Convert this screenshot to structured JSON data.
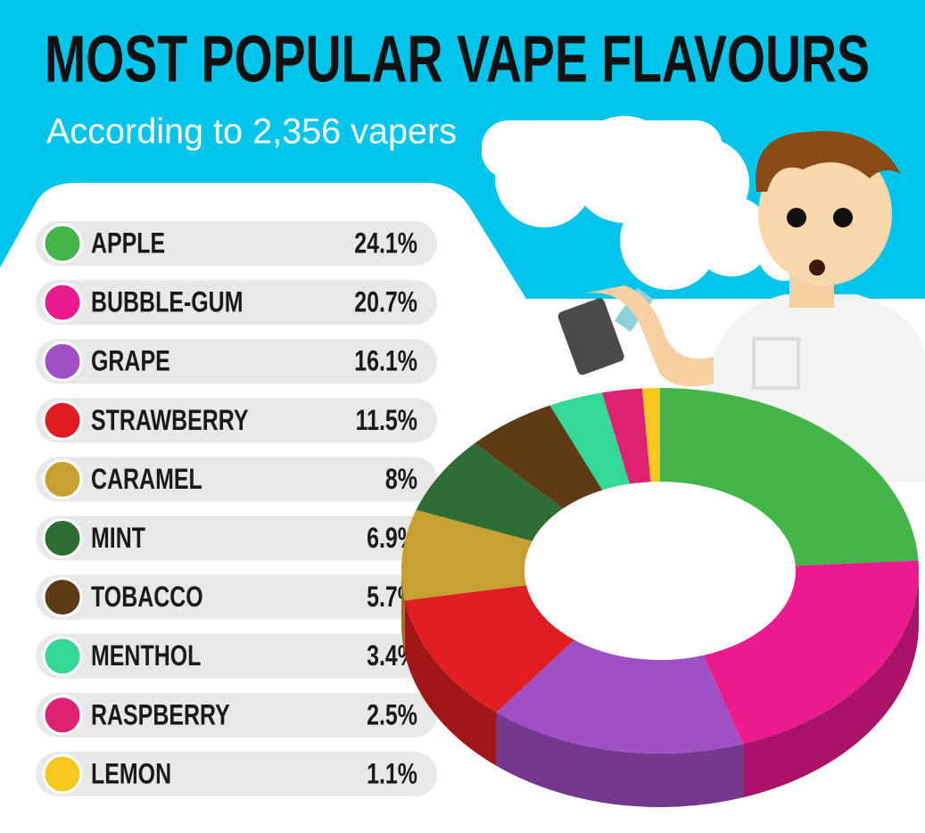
{
  "chart_data": {
    "type": "donut",
    "title": "MOST POPULAR VAPE FLAVOURS",
    "subtitle": "According to 2,356 vapers",
    "categories": [
      "APPLE",
      "BUBBLE-GUM",
      "GRAPE",
      "STRAWBERRY",
      "CARAMEL",
      "MINT",
      "TOBACCO",
      "MENTHOL",
      "RASPBERRY",
      "LEMON"
    ],
    "values": [
      24.1,
      20.7,
      16.1,
      11.5,
      8,
      6.9,
      5.7,
      3.4,
      2.5,
      1.1
    ],
    "value_labels": [
      "24.1%",
      "20.7%",
      "16.1%",
      "11.5%",
      "8%",
      "6.9%",
      "5.7%",
      "3.4%",
      "2.5%",
      "1.1%"
    ],
    "colors": [
      "#44b649",
      "#ec1a8f",
      "#a14fc4",
      "#e01e22",
      "#c6a132",
      "#2e6d34",
      "#5e3a16",
      "#34d896",
      "#dd2271",
      "#f6c81f"
    ]
  }
}
